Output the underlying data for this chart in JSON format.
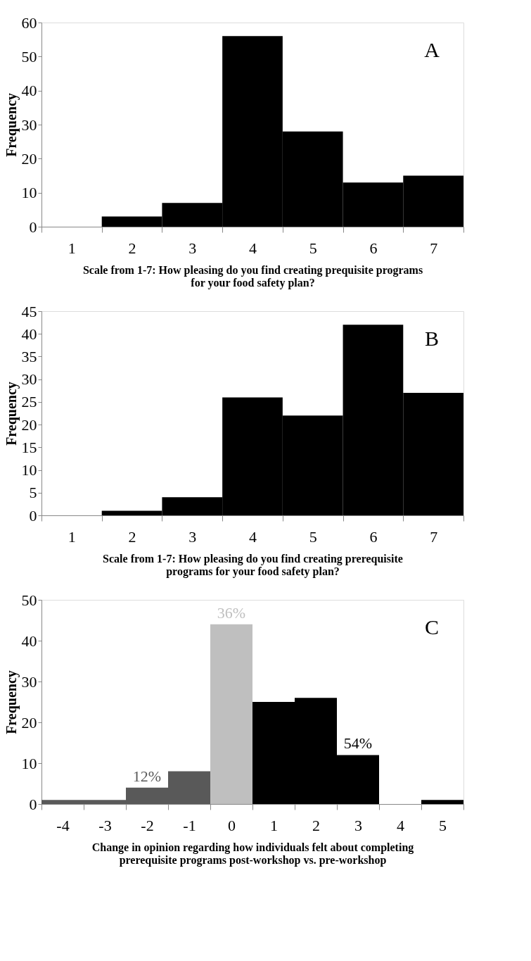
{
  "chart_data": [
    {
      "type": "bar",
      "categories": [
        "1",
        "2",
        "3",
        "4",
        "5",
        "6",
        "7"
      ],
      "values": [
        0,
        3,
        7,
        56,
        28,
        13,
        15
      ],
      "color": "#000000",
      "ylim": [
        0,
        60
      ],
      "yticks": [
        0,
        10,
        20,
        30,
        40,
        50,
        60
      ],
      "ylabel": "Frequency",
      "xlabel": "Scale from 1-7: How pleasing do you find creating prequisite programs for your food safety plan?",
      "annotations": [
        "A"
      ]
    },
    {
      "type": "bar",
      "categories": [
        "1",
        "2",
        "3",
        "4",
        "5",
        "6",
        "7"
      ],
      "values": [
        0,
        1,
        4,
        26,
        22,
        42,
        27
      ],
      "color": "#000000",
      "ylim": [
        0,
        45
      ],
      "yticks": [
        0,
        5,
        10,
        15,
        20,
        25,
        30,
        35,
        40,
        45
      ],
      "ylabel": "Frequency",
      "xlabel": "Scale from 1-7: How pleasing do you find creating prerequisite programs for your food safety plan?",
      "annotations": [
        "B"
      ]
    },
    {
      "type": "bar",
      "categories": [
        "-4",
        "-3",
        "-2",
        "-1",
        "0",
        "1",
        "2",
        "3",
        "4",
        "5"
      ],
      "values": [
        1,
        1,
        4,
        8,
        44,
        25,
        26,
        12,
        0,
        1
      ],
      "colors": [
        "#595959",
        "#595959",
        "#595959",
        "#595959",
        "#bfbfbf",
        "#000000",
        "#000000",
        "#000000",
        "#000000",
        "#000000"
      ],
      "ylim": [
        0,
        50
      ],
      "yticks": [
        0,
        10,
        20,
        30,
        40,
        50
      ],
      "ylabel": "Frequency",
      "xlabel": "Change in opinion regarding how individuals felt about completing prerequisite programs post-workshop vs. pre-workshop",
      "annotations": [
        "C",
        {
          "text": "12%",
          "x": "-2",
          "y": 4
        },
        {
          "text": "36%",
          "x": "0",
          "y": 44
        },
        {
          "text": "54%",
          "x": "3",
          "y": 12
        }
      ]
    }
  ]
}
